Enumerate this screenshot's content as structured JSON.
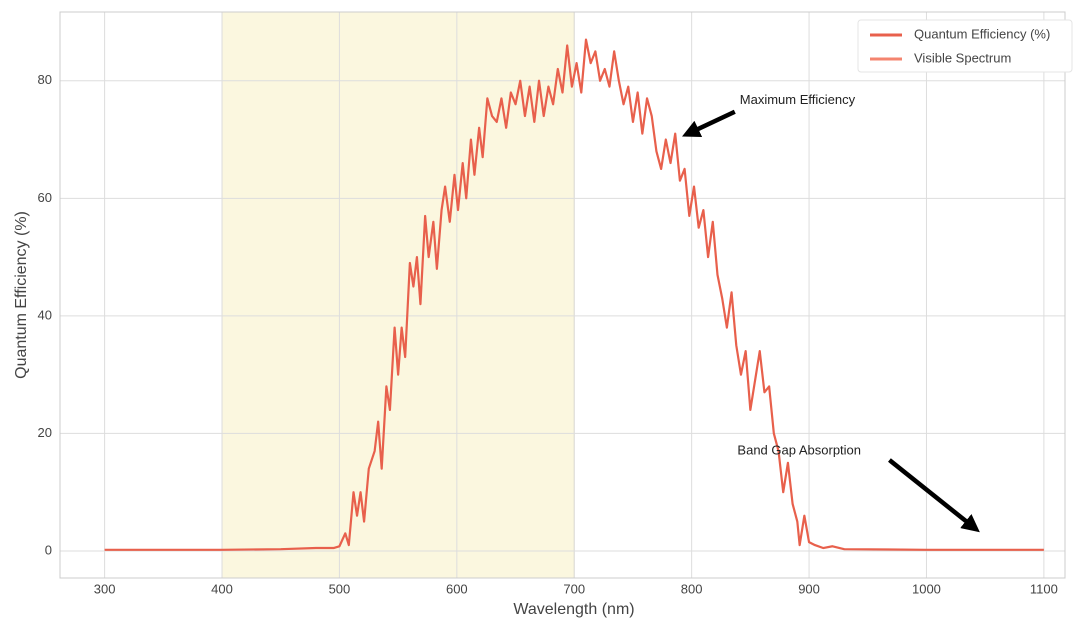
{
  "chart_data": {
    "type": "line",
    "x_label": "Wavelength (nm)",
    "y_label": "Quantum Efficiency (%)",
    "xlim": [
      262,
      1118
    ],
    "ylim": [
      -4.6,
      91.7
    ],
    "xticks": [
      300,
      400,
      500,
      600,
      700,
      800,
      900,
      1000,
      1100
    ],
    "yticks": [
      0,
      20,
      40,
      60,
      80
    ],
    "grid": true,
    "legend": "upper right",
    "visible_spectrum": {
      "name": "Visible Spectrum",
      "range": [
        400,
        700
      ],
      "color": "#fbf7df",
      "legend_color": "#f4846f"
    },
    "series": [
      {
        "name": "Quantum Efficiency (%)",
        "color": "#e8604c",
        "x": [
          300,
          400,
          450,
          480,
          495,
          500,
          505,
          508,
          512,
          515,
          518,
          521,
          525,
          530,
          533,
          536,
          540,
          543,
          547,
          550,
          553,
          556,
          560,
          563,
          566,
          569,
          573,
          576,
          580,
          583,
          587,
          590,
          594,
          598,
          601,
          605,
          608,
          612,
          615,
          619,
          622,
          626,
          630,
          634,
          638,
          642,
          646,
          650,
          654,
          658,
          662,
          666,
          670,
          674,
          678,
          682,
          686,
          690,
          694,
          698,
          702,
          706,
          710,
          714,
          718,
          722,
          726,
          730,
          734,
          738,
          742,
          746,
          750,
          754,
          758,
          762,
          766,
          770,
          774,
          778,
          782,
          786,
          790,
          794,
          798,
          802,
          806,
          810,
          814,
          818,
          822,
          826,
          830,
          834,
          838,
          842,
          846,
          850,
          854,
          858,
          862,
          866,
          870,
          874,
          878,
          882,
          886,
          890,
          892,
          896,
          900,
          905,
          912,
          920,
          930,
          1000,
          1100
        ],
        "values": [
          0.2,
          0.2,
          0.3,
          0.5,
          0.5,
          0.8,
          3,
          1,
          10,
          6,
          10,
          5,
          14,
          17,
          22,
          14,
          28,
          24,
          38,
          30,
          38,
          33,
          49,
          45,
          50,
          42,
          57,
          50,
          56,
          48,
          58,
          62,
          56,
          64,
          58,
          66,
          60,
          70,
          64,
          72,
          67,
          77,
          74,
          73,
          77,
          72,
          78,
          76,
          80,
          74,
          79,
          73,
          80,
          74,
          79,
          76,
          82,
          78,
          86,
          79,
          83,
          78,
          87,
          83,
          85,
          80,
          82,
          79,
          85,
          80,
          76,
          79,
          73,
          78,
          71,
          77,
          74,
          68,
          65,
          70,
          66,
          71,
          63,
          65,
          57,
          62,
          55,
          58,
          50,
          56,
          47,
          43,
          38,
          44,
          35,
          30,
          34,
          24,
          29,
          34,
          27,
          28,
          20,
          17,
          10,
          15,
          8,
          5,
          1,
          6,
          1.5,
          1,
          0.5,
          0.8,
          0.3,
          0.2,
          0.2
        ]
      }
    ],
    "annotations": [
      {
        "text": "Maximum Efficiency",
        "xy": [
          797,
          71
        ],
        "xytext": [
          841,
          76.6
        ]
      },
      {
        "text": "Band Gap Absorption",
        "xy": [
          1041,
          3.9
        ],
        "xytext": [
          839,
          17
        ]
      }
    ]
  }
}
